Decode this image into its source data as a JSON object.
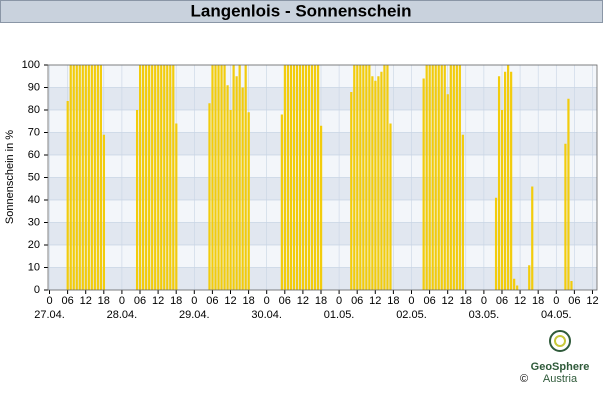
{
  "chart_data": {
    "type": "bar",
    "title": "Langenlois - Sonnenschein",
    "y_label": "Sonnenschein in %",
    "x": [
      6,
      7,
      8,
      9,
      10,
      11,
      12,
      13,
      14,
      15,
      16,
      17,
      18,
      29,
      30,
      31,
      32,
      33,
      34,
      35,
      36,
      37,
      38,
      39,
      40,
      41,
      42,
      53,
      54,
      55,
      56,
      57,
      58,
      59,
      60,
      61,
      62,
      63,
      64,
      65,
      66,
      77,
      78,
      79,
      80,
      81,
      82,
      83,
      84,
      85,
      86,
      87,
      88,
      89,
      90,
      100,
      101,
      102,
      103,
      104,
      105,
      106,
      107,
      108,
      109,
      110,
      111,
      112,
      113,
      124,
      125,
      126,
      127,
      128,
      129,
      130,
      131,
      132,
      133,
      134,
      135,
      136,
      137,
      148,
      149,
      150,
      151,
      152,
      153,
      154,
      155,
      159,
      160,
      171,
      172,
      173
    ],
    "values": [
      84,
      100,
      100,
      100,
      100,
      100,
      100,
      100,
      100,
      100,
      100,
      100,
      69,
      80,
      100,
      100,
      100,
      100,
      100,
      100,
      100,
      100,
      100,
      100,
      100,
      100,
      74,
      83,
      100,
      100,
      100,
      100,
      100,
      91,
      80,
      100,
      95,
      100,
      90,
      100,
      79,
      78,
      100,
      100,
      100,
      100,
      100,
      100,
      100,
      100,
      100,
      100,
      100,
      100,
      73,
      88,
      100,
      100,
      100,
      100,
      100,
      100,
      95,
      93,
      95,
      97,
      100,
      100,
      74,
      94,
      100,
      100,
      100,
      100,
      100,
      100,
      100,
      87,
      100,
      100,
      100,
      100,
      69,
      41,
      95,
      80,
      97,
      100,
      97,
      5,
      2,
      11,
      46,
      65,
      85,
      4
    ],
    "color": "#f2cc0c",
    "xlim": [
      -0.5,
      181.5
    ],
    "ylim": [
      0,
      100
    ],
    "yticks": [
      0,
      10,
      20,
      30,
      40,
      50,
      60,
      70,
      80,
      90,
      100
    ],
    "xticks": [
      0,
      {
        "value": 6,
        "label": "06"
      },
      12,
      18,
      {
        "value": 24,
        "label": "0"
      },
      {
        "value": 30,
        "label": "06"
      },
      {
        "value": 36,
        "label": "12"
      },
      {
        "value": 42,
        "label": "18"
      },
      {
        "value": 48,
        "label": "0"
      },
      {
        "value": 54,
        "label": "06"
      },
      {
        "value": 60,
        "label": "12"
      },
      {
        "value": 66,
        "label": "18"
      },
      {
        "value": 72,
        "label": "0"
      },
      {
        "value": 78,
        "label": "06"
      },
      {
        "value": 84,
        "label": "12"
      },
      {
        "value": 90,
        "label": "18"
      },
      {
        "value": 96,
        "label": "0"
      },
      {
        "value": 102,
        "label": "06"
      },
      {
        "value": 108,
        "label": "12"
      },
      {
        "value": 114,
        "label": "18"
      },
      {
        "value": 120,
        "label": "0"
      },
      {
        "value": 126,
        "label": "06"
      },
      {
        "value": 132,
        "label": "12"
      },
      {
        "value": 138,
        "label": "18"
      },
      {
        "value": 144,
        "label": "0"
      },
      {
        "value": 150,
        "label": "06"
      },
      {
        "value": 156,
        "label": "12"
      },
      {
        "value": 162,
        "label": "18"
      },
      {
        "value": 168,
        "label": "0"
      },
      {
        "value": 174,
        "label": "06"
      },
      {
        "value": 180,
        "label": "12"
      }
    ],
    "day_labels": [
      {
        "value": 0,
        "label": "27.04."
      },
      {
        "value": 24,
        "label": "28.04."
      },
      {
        "value": 48,
        "label": "29.04."
      },
      {
        "value": 72,
        "label": "30.04."
      },
      {
        "value": 96,
        "label": "01.05."
      },
      {
        "value": 120,
        "label": "02.05."
      },
      {
        "value": 144,
        "label": "03.05."
      },
      {
        "value": 168,
        "label": "04.05."
      }
    ],
    "grid": true
  },
  "logo": {
    "name": "GeoSphere",
    "sub": "Austria",
    "copyright": "©"
  }
}
